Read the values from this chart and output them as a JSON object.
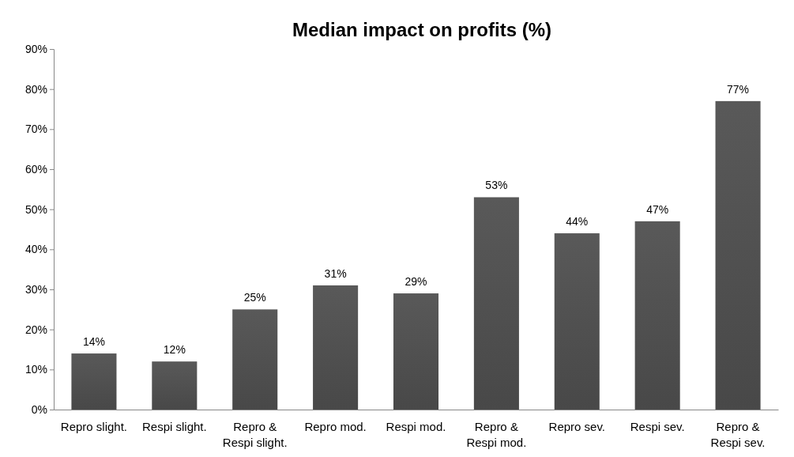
{
  "chart_data": {
    "type": "bar",
    "title": "Median impact on profits (%)",
    "categories": [
      "Repro slight.",
      "Respi slight.",
      "Repro & Respi slight.",
      "Repro mod.",
      "Respi mod.",
      "Repro & Respi mod.",
      "Repro sev.",
      "Respi sev.",
      "Repro & Respi sev."
    ],
    "values": [
      14,
      12,
      25,
      31,
      29,
      53,
      44,
      47,
      77
    ],
    "value_labels": [
      "14%",
      "12%",
      "25%",
      "31%",
      "29%",
      "53%",
      "44%",
      "47%",
      "77%"
    ],
    "color": "#595959",
    "ylim": [
      0,
      90
    ],
    "yticks": [
      {
        "value": 0,
        "label": "0%"
      },
      {
        "value": 10,
        "label": "10%"
      },
      {
        "value": 20,
        "label": "20%"
      },
      {
        "value": 30,
        "label": "30%"
      },
      {
        "value": 40,
        "label": "40%"
      },
      {
        "value": 50,
        "label": "50%"
      },
      {
        "value": 60,
        "label": "60%"
      },
      {
        "value": 70,
        "label": "70%"
      },
      {
        "value": 80,
        "label": "80%"
      },
      {
        "value": 90,
        "label": "90%"
      }
    ],
    "grid": false
  }
}
